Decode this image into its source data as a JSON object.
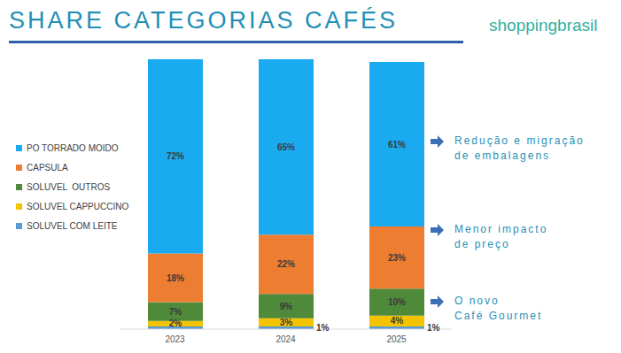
{
  "chart_data": {
    "type": "bar",
    "title": "SHARE CATEGORIAS CAFÉS",
    "brand": "shoppingbrasil",
    "categories": [
      "2023",
      "2024",
      "2025"
    ],
    "stacked": true,
    "data_labels": true,
    "legend": "left",
    "tick_labels": "x",
    "grid": false,
    "ylim": [
      0,
      100
    ],
    "series": [
      {
        "name": "PO TORRADO MOIDO",
        "color": "#1aaaf0",
        "values": [
          72,
          65,
          61
        ],
        "value_labels": [
          "72%",
          "65%",
          "61%"
        ]
      },
      {
        "name": "CAPSULA",
        "color": "#ed7d31",
        "values": [
          18,
          22,
          23
        ],
        "value_labels": [
          "18%",
          "22%",
          "23%"
        ]
      },
      {
        "name": "SOLUVEL  OUTROS",
        "color": "#4f8a3a",
        "values": [
          7,
          9,
          10
        ],
        "value_labels": [
          "7%",
          "9%",
          "10%"
        ]
      },
      {
        "name": "SOLUVEL CAPPUCCINO",
        "color": "#f5c400",
        "values": [
          2,
          3,
          4
        ],
        "value_labels": [
          "2%",
          "3%",
          "4%"
        ]
      },
      {
        "name": "SOLUVEL COM LEITE",
        "color": "#5b9bd5",
        "values": [
          1,
          1,
          1
        ],
        "value_labels": [
          null,
          "1%",
          "1%"
        ]
      }
    ],
    "annotations": [
      {
        "text": [
          "Redução e migração",
          "de embalagens"
        ]
      },
      {
        "text": [
          "Menor impacto",
          "de preço"
        ]
      },
      {
        "text": [
          "O novo",
          "Café Gourmet"
        ]
      }
    ]
  }
}
